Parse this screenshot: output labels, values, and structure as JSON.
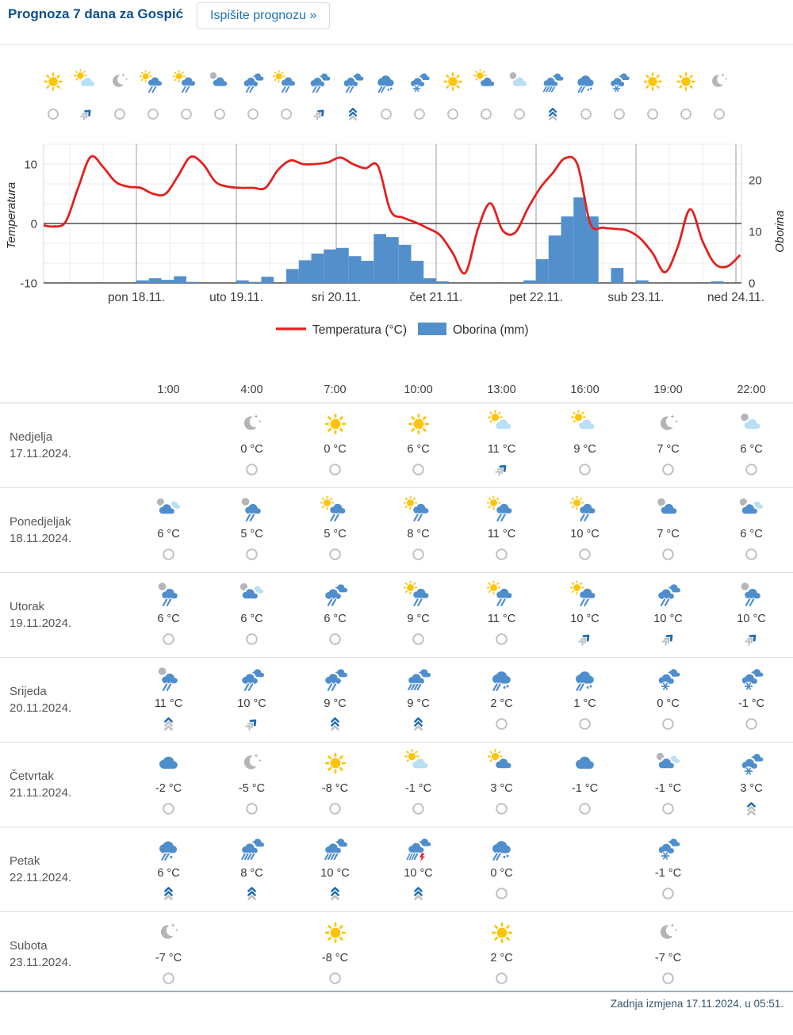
{
  "page": {
    "title": "Prognoza 7 dana za Gospić",
    "print_button": "Ispišite prognozu »",
    "last_update": "Zadnja izmjena 17.11.2024. u 05:51."
  },
  "colors": {
    "title_blue": "#0d4e8d",
    "link_blue": "#1f72b6",
    "temp_red": "#e4201f",
    "precip_blue": "#5390cb",
    "sun_yellow": "#fdc408",
    "cloud_blue": "#4f8ecd",
    "cloud_light": "#badef4",
    "cloud_gray": "#b3b5b8",
    "wind_blue": "#1d6db3",
    "wind_gray": "#bcbfc3"
  },
  "strip": {
    "items": [
      {
        "icon": "sun",
        "wind": "calm"
      },
      {
        "icon": "sun-cloud-light",
        "wind": "breeze"
      },
      {
        "icon": "moon",
        "wind": "calm"
      },
      {
        "icon": "rain-sun",
        "wind": "calm"
      },
      {
        "icon": "rain-sun",
        "wind": "calm"
      },
      {
        "icon": "cloud-gray",
        "wind": "calm"
      },
      {
        "icon": "rain",
        "wind": "calm"
      },
      {
        "icon": "rain-sun",
        "wind": "calm"
      },
      {
        "icon": "rain",
        "wind": "breeze"
      },
      {
        "icon": "rain",
        "wind": "gale"
      },
      {
        "icon": "sleet",
        "wind": "calm"
      },
      {
        "icon": "snow",
        "wind": "calm"
      },
      {
        "icon": "sun",
        "wind": "calm"
      },
      {
        "icon": "sun-cloud",
        "wind": "calm"
      },
      {
        "icon": "night-cloud",
        "wind": "calm"
      },
      {
        "icon": "rain-heavy",
        "wind": "gale"
      },
      {
        "icon": "sleet",
        "wind": "calm"
      },
      {
        "icon": "snow",
        "wind": "calm"
      },
      {
        "icon": "sun",
        "wind": "calm"
      },
      {
        "icon": "sun",
        "wind": "calm"
      },
      {
        "icon": "moon",
        "wind": "calm"
      }
    ]
  },
  "chart_data": {
    "type": "mixed",
    "title": "",
    "x_axis": {
      "days_total": 7,
      "day_labels": [
        "pon 18.11.",
        "uto 19.11.",
        "sri 20.11.",
        "čet 21.11.",
        "pet 22.11.",
        "sub 23.11.",
        "ned 24.11."
      ],
      "range": "17.11. 00:00 – 24.11. 01:00"
    },
    "y_left": {
      "title": "Temperatura",
      "ticks": [
        10,
        0,
        -10
      ],
      "min": -13.3,
      "max": 13.3
    },
    "y_right": {
      "title": "Oborina",
      "ticks": [
        20,
        10,
        0
      ],
      "min": 0,
      "max": 27
    },
    "legend": [
      {
        "label": "Temperatura (°C)",
        "swatch": "line",
        "color": "#e4201f"
      },
      {
        "label": "Oborina (mm)",
        "swatch": "box",
        "color": "#5390cb"
      }
    ],
    "series": [
      {
        "name": "Temperatura (°C)",
        "type": "line",
        "axis": "left",
        "color": "#e4201f",
        "start": "17.11. 01:00",
        "step_hours": 3,
        "values": [
          -0.2,
          -0.5,
          0.3,
          6,
          11.2,
          9.5,
          7,
          6.2,
          6,
          5,
          5,
          8,
          11.2,
          10,
          7,
          6.2,
          6,
          6,
          6,
          9,
          10.6,
          10,
          10,
          10.3,
          11.1,
          10,
          9.3,
          9.7,
          2.2,
          1,
          0.2,
          -0.8,
          -2,
          -5,
          -8.3,
          -1,
          3.4,
          -1.2,
          -1.5,
          2.5,
          6,
          8.5,
          11,
          9.8,
          0,
          -0.7,
          -0.9,
          -1.2,
          -2.5,
          -5,
          -8.2,
          -4,
          2.4,
          -3,
          -6.8,
          -7.2,
          -5.3
        ]
      },
      {
        "name": "Oborina (mm)",
        "type": "bar",
        "axis": "right",
        "color": "#5390cb",
        "start": "17.11. 00:00",
        "step_hours": 3,
        "values": [
          0,
          0,
          0,
          0,
          0,
          0,
          0,
          0,
          0.5,
          0.9,
          0.6,
          1.3,
          0.2,
          0,
          0,
          0,
          0.5,
          0.2,
          1.2,
          0,
          2.7,
          4.4,
          5.7,
          6.5,
          6.8,
          5.2,
          4.3,
          9.5,
          8.9,
          7.4,
          4.3,
          0.9,
          0.3,
          0,
          0,
          0,
          0,
          0,
          0,
          0.5,
          4.6,
          9.2,
          12.9,
          16.6,
          12.9,
          0,
          2.9,
          0,
          0.5,
          0,
          0,
          0,
          0,
          0,
          0.3,
          0
        ]
      }
    ]
  },
  "table": {
    "time_headers": [
      "1:00",
      "4:00",
      "7:00",
      "10:00",
      "13:00",
      "16:00",
      "19:00",
      "22:00"
    ],
    "rows": [
      {
        "day": "Nedjelja",
        "date": "17.11.2024.",
        "cells": [
          null,
          {
            "icon": "moon",
            "temp": "0 °C",
            "wind": "calm"
          },
          {
            "icon": "sun",
            "temp": "0 °C",
            "wind": "calm"
          },
          {
            "icon": "sun",
            "temp": "6 °C",
            "wind": "calm"
          },
          {
            "icon": "sun-cloud-light",
            "temp": "11 °C",
            "wind": "breeze"
          },
          {
            "icon": "sun-cloud-light",
            "temp": "9 °C",
            "wind": "calm"
          },
          {
            "icon": "moon",
            "temp": "7 °C",
            "wind": "calm"
          },
          {
            "icon": "night-cloud",
            "temp": "6 °C",
            "wind": "calm"
          }
        ]
      },
      {
        "day": "Ponedjeljak",
        "date": "18.11.2024.",
        "cells": [
          {
            "icon": "clouds-mixed",
            "temp": "6 °C",
            "wind": "calm"
          },
          {
            "icon": "rain-gray",
            "temp": "5 °C",
            "wind": "calm"
          },
          {
            "icon": "rain-sun",
            "temp": "5 °C",
            "wind": "calm"
          },
          {
            "icon": "rain-sun",
            "temp": "8 °C",
            "wind": "calm"
          },
          {
            "icon": "rain-sun",
            "temp": "11 °C",
            "wind": "calm"
          },
          {
            "icon": "rain-sun",
            "temp": "10 °C",
            "wind": "calm"
          },
          {
            "icon": "cloud-gray",
            "temp": "7 °C",
            "wind": "calm"
          },
          {
            "icon": "clouds-mixed",
            "temp": "6 °C",
            "wind": "calm"
          }
        ]
      },
      {
        "day": "Utorak",
        "date": "19.11.2024.",
        "cells": [
          {
            "icon": "rain-gray",
            "temp": "6 °C",
            "wind": "calm"
          },
          {
            "icon": "clouds-mixed",
            "temp": "6 °C",
            "wind": "calm"
          },
          {
            "icon": "rain",
            "temp": "6 °C",
            "wind": "calm"
          },
          {
            "icon": "rain-sun",
            "temp": "9 °C",
            "wind": "calm"
          },
          {
            "icon": "rain-sun",
            "temp": "11 °C",
            "wind": "calm"
          },
          {
            "icon": "rain-sun",
            "temp": "10 °C",
            "wind": "breeze"
          },
          {
            "icon": "rain",
            "temp": "10 °C",
            "wind": "breeze"
          },
          {
            "icon": "rain-gray",
            "temp": "10 °C",
            "wind": "breeze"
          }
        ]
      },
      {
        "day": "Srijeda",
        "date": "20.11.2024.",
        "cells": [
          {
            "icon": "rain-gray",
            "temp": "11 °C",
            "wind": "strong"
          },
          {
            "icon": "rain",
            "temp": "10 °C",
            "wind": "breeze"
          },
          {
            "icon": "rain",
            "temp": "9 °C",
            "wind": "gale"
          },
          {
            "icon": "rain-heavy",
            "temp": "9 °C",
            "wind": "gale"
          },
          {
            "icon": "sleet",
            "temp": "2 °C",
            "wind": "calm"
          },
          {
            "icon": "sleet",
            "temp": "1 °C",
            "wind": "calm"
          },
          {
            "icon": "snow",
            "temp": "0 °C",
            "wind": "calm"
          },
          {
            "icon": "snow",
            "temp": "-1 °C",
            "wind": "calm"
          }
        ]
      },
      {
        "day": "Četvrtak",
        "date": "21.11.2024.",
        "cells": [
          {
            "icon": "cloud",
            "temp": "-2 °C",
            "wind": "calm"
          },
          {
            "icon": "moon",
            "temp": "-5 °C",
            "wind": "calm"
          },
          {
            "icon": "sun",
            "temp": "-8 °C",
            "wind": "calm"
          },
          {
            "icon": "sun-cloud-light",
            "temp": "-1 °C",
            "wind": "calm"
          },
          {
            "icon": "sun-cloud",
            "temp": "3 °C",
            "wind": "calm"
          },
          {
            "icon": "cloud",
            "temp": "-1 °C",
            "wind": "calm"
          },
          {
            "icon": "clouds-mixed",
            "temp": "-1 °C",
            "wind": "calm"
          },
          {
            "icon": "snow",
            "temp": "3 °C",
            "wind": "strong"
          }
        ]
      },
      {
        "day": "Petak",
        "date": "22.11.2024.",
        "cells": [
          {
            "icon": "rain-snow",
            "temp": "6 °C",
            "wind": "gale"
          },
          {
            "icon": "rain-heavy",
            "temp": "8 °C",
            "wind": "gale"
          },
          {
            "icon": "rain-heavy",
            "temp": "10 °C",
            "wind": "gale"
          },
          {
            "icon": "thunder",
            "temp": "10 °C",
            "wind": "gale"
          },
          {
            "icon": "sleet",
            "temp": "0 °C",
            "wind": "calm"
          },
          null,
          {
            "icon": "snow",
            "temp": "-1 °C",
            "wind": "calm"
          },
          null
        ]
      },
      {
        "day": "Subota",
        "date": "23.11.2024.",
        "cells": [
          {
            "icon": "moon",
            "temp": "-7 °C",
            "wind": "calm"
          },
          null,
          {
            "icon": "sun",
            "temp": "-8 °C",
            "wind": "calm"
          },
          null,
          {
            "icon": "sun",
            "temp": "2 °C",
            "wind": "calm"
          },
          null,
          {
            "icon": "moon",
            "temp": "-7 °C",
            "wind": "calm"
          },
          null
        ]
      }
    ]
  }
}
